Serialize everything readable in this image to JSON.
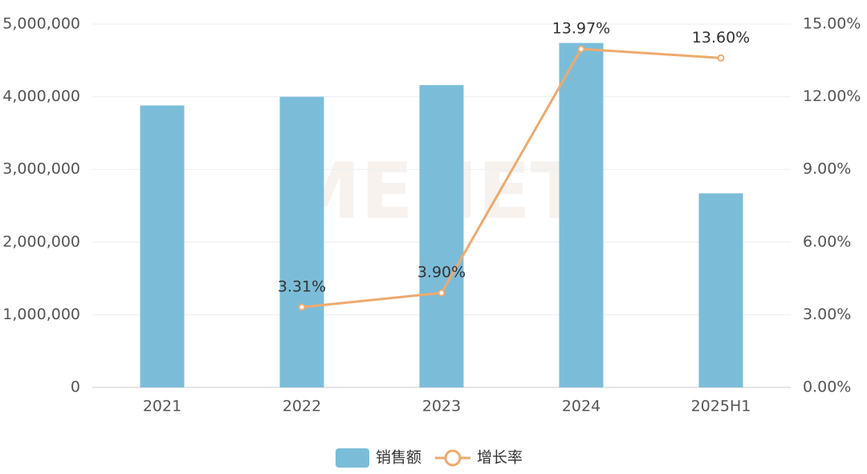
{
  "chart_data": {
    "type": "bar",
    "watermark": "MENET",
    "categories": [
      "2021",
      "2022",
      "2023",
      "2024",
      "2025H1"
    ],
    "series": [
      {
        "name": "销售额",
        "type": "bar",
        "color": "#7bbdd9",
        "values": [
          3880000,
          4000000,
          4160000,
          4740000,
          2670000
        ]
      },
      {
        "name": "增长率",
        "type": "line",
        "axis": "y2",
        "color": "#eeaa6e",
        "values": [
          null,
          3.31,
          3.9,
          13.97,
          13.6
        ],
        "value_labels": [
          null,
          "3.31%",
          "3.90%",
          "13.97%",
          "13.60%"
        ]
      }
    ],
    "ylim": [
      0,
      5000000
    ],
    "yticks": [
      0,
      {
        "value": 1000000,
        "label": "1,000,000"
      },
      {
        "value": 2000000,
        "label": "2,000,000"
      },
      {
        "value": 3000000,
        "label": "3,000,000"
      },
      {
        "value": 4000000,
        "label": "4,000,000"
      },
      {
        "value": 5000000,
        "label": "5,000,000"
      }
    ],
    "y2lim": [
      0,
      15
    ],
    "y2ticks": [
      {
        "value": 0,
        "label": "0.00%"
      },
      {
        "value": 3,
        "label": "3.00%"
      },
      {
        "value": 6,
        "label": "6.00%"
      },
      {
        "value": 9,
        "label": "9.00%"
      },
      {
        "value": 12,
        "label": "12.00%"
      },
      {
        "value": 15,
        "label": "15.00%"
      }
    ],
    "grid": true,
    "legend": "bottom"
  }
}
